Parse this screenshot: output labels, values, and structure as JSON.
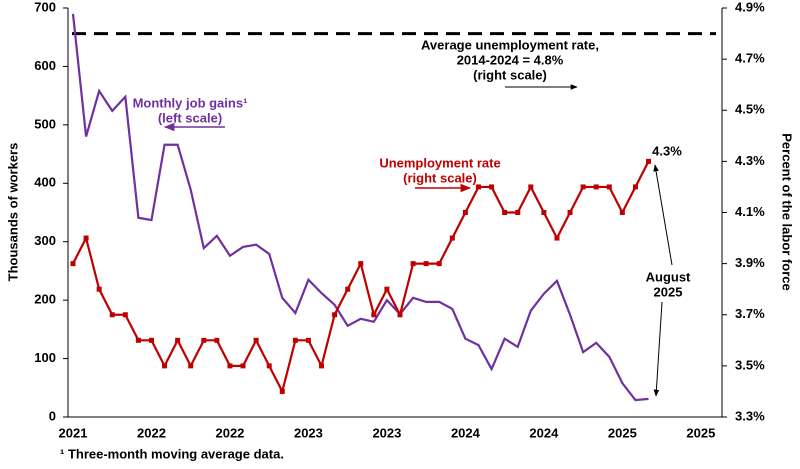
{
  "chart_data": {
    "type": "line",
    "categories": [
      "2021",
      null,
      null,
      null,
      null,
      null,
      "2022",
      null,
      null,
      null,
      null,
      null,
      "2022",
      null,
      null,
      null,
      null,
      null,
      "2023",
      null,
      null,
      null,
      null,
      null,
      "2023",
      null,
      null,
      null,
      null,
      null,
      "2024",
      null,
      null,
      null,
      null,
      null,
      "2024",
      null,
      null,
      null,
      null,
      null,
      "2025",
      null,
      null,
      null,
      null,
      null,
      "2025"
    ],
    "series": [
      {
        "name": "Monthly job gains¹",
        "color": "#7030a0",
        "axis": "y",
        "values": [
          690,
          480,
          558,
          524,
          548,
          341,
          337,
          466,
          466,
          389,
          289,
          310,
          276,
          291,
          295,
          279,
          204,
          178,
          235,
          212,
          192,
          156,
          168,
          163,
          200,
          176,
          204,
          197,
          197,
          185,
          134,
          123,
          82,
          134,
          120,
          182,
          211,
          233,
          175,
          111,
          127,
          103,
          58,
          29,
          31,
          null,
          null,
          null,
          null
        ]
      },
      {
        "name": "Unemployment rate",
        "color": "#c00000",
        "axis": "y2",
        "markers": true,
        "values": [
          3.9,
          4.0,
          3.8,
          3.7,
          3.7,
          3.6,
          3.6,
          3.5,
          3.6,
          3.5,
          3.6,
          3.6,
          3.5,
          3.5,
          3.6,
          3.5,
          3.4,
          3.6,
          3.6,
          3.5,
          3.7,
          3.8,
          3.9,
          3.7,
          3.8,
          3.7,
          3.9,
          3.9,
          3.9,
          4.0,
          4.1,
          4.2,
          4.2,
          4.1,
          4.1,
          4.2,
          4.1,
          4.0,
          4.1,
          4.2,
          4.2,
          4.2,
          4.1,
          4.2,
          4.3,
          null,
          null,
          null,
          null
        ]
      }
    ],
    "ylim": [
      0,
      700
    ],
    "yticks": [
      0,
      100,
      200,
      300,
      400,
      500,
      600,
      700
    ],
    "y2lim": [
      3.3,
      4.9
    ],
    "y2ticks": [
      {
        "value": 3.3,
        "label": "3.3%"
      },
      {
        "value": 3.5,
        "label": "3.5%"
      },
      {
        "value": 3.7,
        "label": "3.7%"
      },
      {
        "value": 3.9,
        "label": "3.9%"
      },
      {
        "value": 4.1,
        "label": "4.1%"
      },
      {
        "value": 4.3,
        "label": "4.3%"
      },
      {
        "value": 4.5,
        "label": "4.5%"
      },
      {
        "value": 4.7,
        "label": "4.7%"
      },
      {
        "value": 4.9,
        "label": "4.9%"
      }
    ],
    "ylabel": "Thousands of workers",
    "y2label": "Percent of the labor force",
    "reference_line": {
      "value": 4.8,
      "axis": "y2",
      "color": "#000000"
    },
    "annotations": [
      {
        "lines": [
          "Average unemployment rate,",
          "2014-2024 = 4.8%",
          "(right scale)"
        ],
        "color": "#000000"
      },
      {
        "lines": [
          "Monthly job gains¹",
          "(left scale)"
        ],
        "color": "#7030a0"
      },
      {
        "lines": [
          "Unemployment rate",
          "(right scale)"
        ],
        "color": "#c00000"
      },
      {
        "lines": [
          "4.3%"
        ],
        "color": "#000000"
      },
      {
        "lines": [
          "August",
          "2025"
        ],
        "color": "#000000"
      }
    ],
    "footnote": "¹ Three-month moving average data."
  }
}
